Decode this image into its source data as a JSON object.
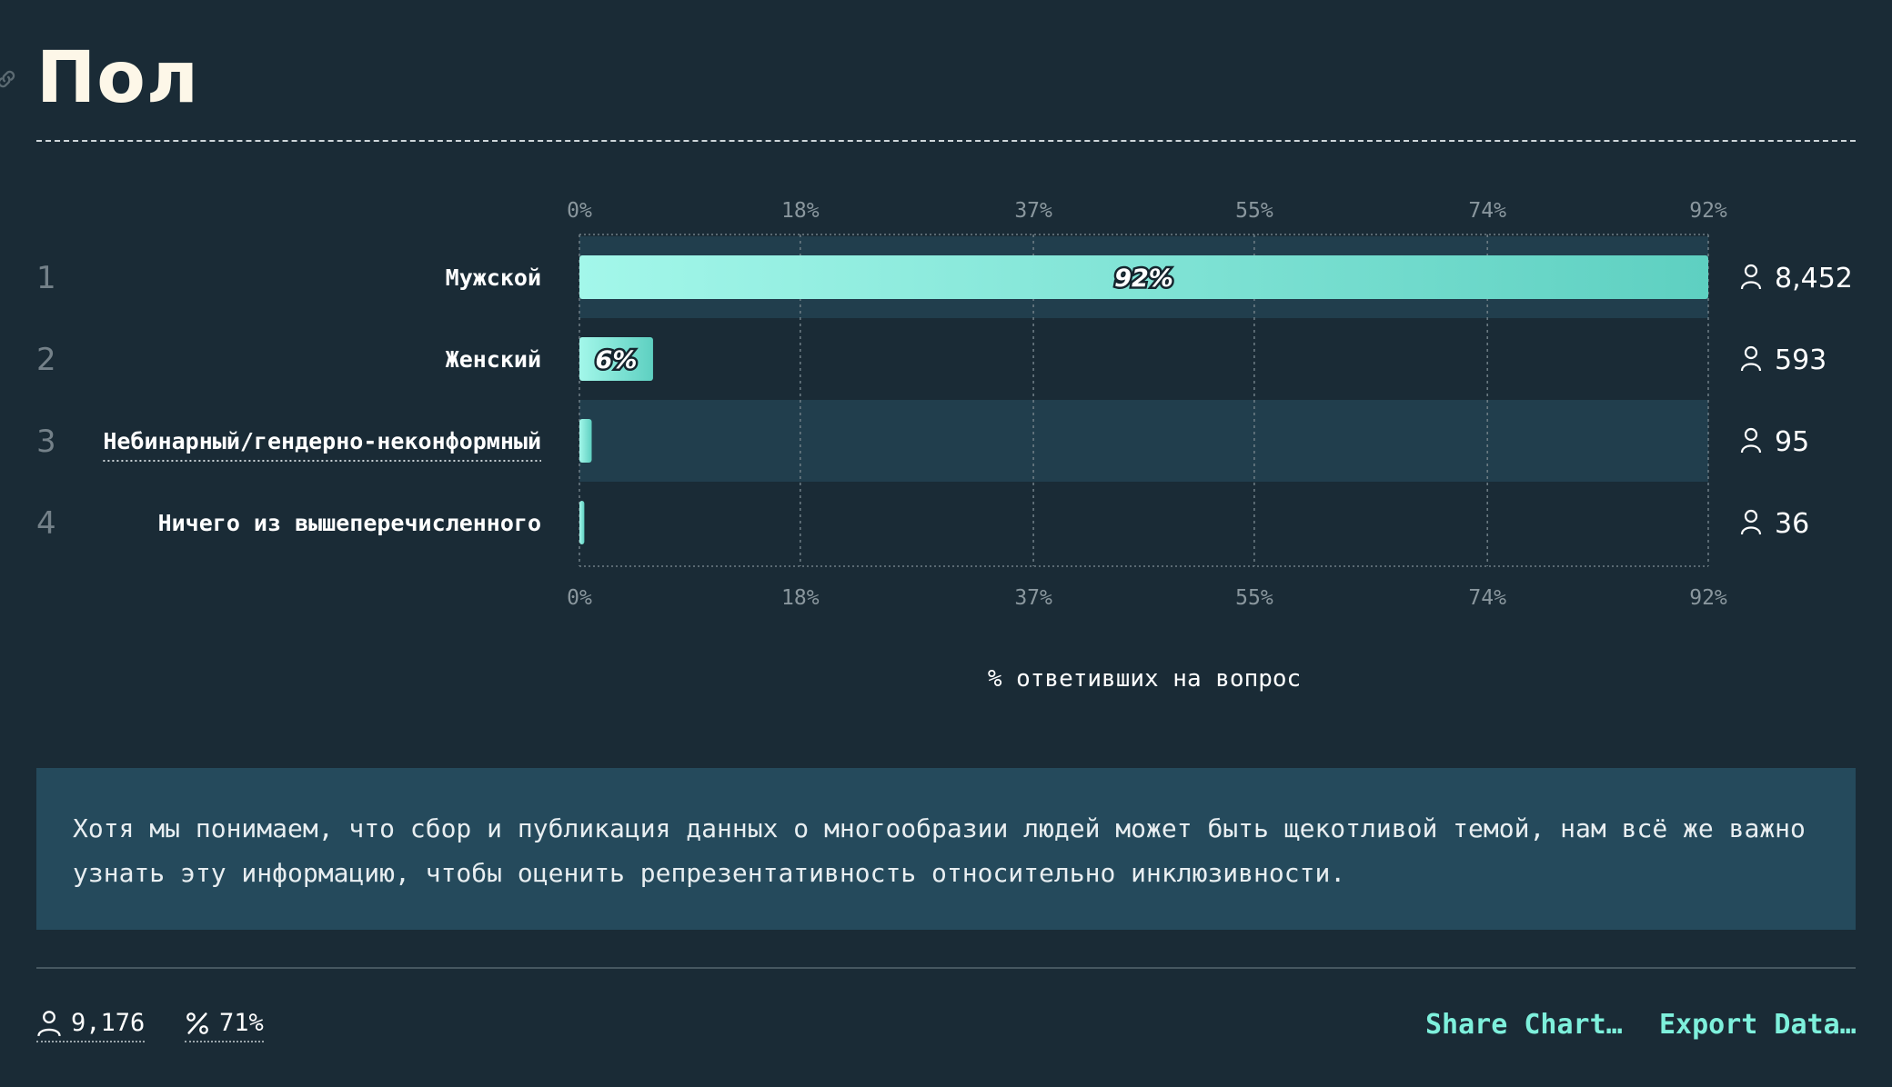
{
  "title": "Пол",
  "chart_data": {
    "type": "bar",
    "orientation": "horizontal",
    "categories": [
      "Мужской",
      "Женский",
      "Небинарный/гендерно-неконформный",
      "Ничего из вышеперечисленного"
    ],
    "values": [
      92,
      6,
      1,
      0.4
    ],
    "bar_labels": [
      "92%",
      "6%",
      "",
      ""
    ],
    "counts": [
      "8,452",
      "593",
      "95",
      "36"
    ],
    "ranks": [
      "1",
      "2",
      "3",
      "4"
    ],
    "xlim": [
      0,
      92
    ],
    "x_ticks": [
      0,
      18,
      37,
      55,
      74,
      92
    ],
    "x_tick_labels": [
      "0%",
      "18%",
      "37%",
      "55%",
      "74%",
      "92%"
    ],
    "xlabel": "% ответивших на вопрос",
    "grid": true,
    "colors": {
      "bar_start": "#a3f7ea",
      "bar_end": "#5ed0c1",
      "row_band": "#213e4d"
    }
  },
  "note": "Хотя мы понимаем, что сбор и публикация данных о многообразии людей может быть щекотливой темой, нам всё же важно узнать эту информацию, чтобы оценить репрезентативность относительно инклюзивности.",
  "footer": {
    "respondents": "9,176",
    "response_rate": "71%",
    "share_label": "Share Chart…",
    "export_label": "Export Data…"
  }
}
